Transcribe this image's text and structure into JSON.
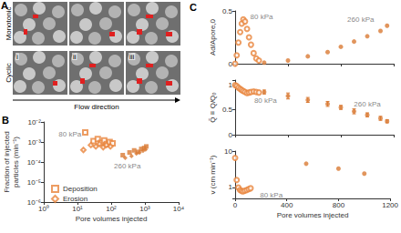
{
  "panel_a": {
    "label": "A",
    "rows": [
      "Monotonic",
      "Cyclic"
    ],
    "columns": [
      "i",
      "ii",
      "iii"
    ],
    "caption": "Flow direction"
  },
  "chart_data": [
    {
      "title": "B",
      "type": "scatter",
      "log": true,
      "xlabel": "Pore volumes injected",
      "ylabel": "Fraction of injected\nparticles (min⁻¹)",
      "xlim": [
        1,
        10000
      ],
      "xticks": [
        {
          "value": 1,
          "label": "10⁰"
        },
        {
          "value": 10,
          "label": "10¹"
        },
        {
          "value": 100,
          "label": "10²"
        },
        {
          "value": 1000,
          "label": "10³"
        },
        {
          "value": 10000,
          "label": "10⁴"
        }
      ],
      "ylim": [
        1e-06,
        0.01
      ],
      "yticks": [
        {
          "value": 1e-06,
          "label": "10⁻⁶"
        },
        {
          "value": 1e-05,
          "label": "10⁻⁵"
        },
        {
          "value": 0.0001,
          "label": "10⁻⁴"
        },
        {
          "value": 0.001,
          "label": "10⁻³"
        },
        {
          "value": 0.01,
          "label": "10⁻²"
        }
      ],
      "grid": false,
      "legend": "lower left",
      "series": [
        {
          "name": "Deposition",
          "marker": "open_square",
          "color": "#e8843c",
          "x": [
            17,
            30,
            40,
            50,
            62,
            75,
            90,
            110
          ],
          "values": [
            0.003,
            0.0011,
            0.0014,
            0.0009,
            0.0012,
            0.0008,
            0.001,
            0.00085
          ]
        },
        {
          "name": "Erosion",
          "marker": "open_diamond",
          "color": "#e8843c",
          "x": [
            15,
            25,
            35,
            45,
            58,
            72,
            95
          ],
          "values": [
            0.0004,
            0.0007,
            0.0006,
            0.0008,
            0.00055,
            0.0007,
            0.0006
          ]
        },
        {
          "name": "Deposition",
          "marker": "square",
          "color": "#d97a34",
          "x": [
            220,
            350,
            480,
            620,
            780,
            950,
            1100
          ],
          "values": [
            0.00022,
            0.0003,
            0.00038,
            0.00032,
            0.00045,
            0.0005,
            0.0006
          ]
        },
        {
          "name": "Erosion",
          "marker": "diamond",
          "color": "#d97a34",
          "x": [
            260,
            400,
            560,
            700,
            880,
            1050
          ],
          "values": [
            0.00016,
            0.0002,
            0.00026,
            0.0003,
            0.00036,
            0.00042
          ]
        }
      ],
      "annotations": [
        {
          "text": "80 kPa",
          "x": 6,
          "y": 0.0025
        },
        {
          "text": "260 kPa",
          "x": 300,
          "y": 6e-05
        }
      ]
    },
    {
      "title": "C",
      "type": "scatter",
      "ylabel": "Ad/Apore,0",
      "xlim": [
        0,
        1200
      ],
      "xticks": [
        0,
        400,
        800,
        1200
      ],
      "ylim": [
        0,
        0.5
      ],
      "yticks": [
        0,
        0.5
      ],
      "grid": false,
      "tick_labels": "y",
      "series": [
        {
          "marker": "open_circle",
          "color": "#e8843c",
          "x": [
            0,
            12,
            25,
            38,
            50,
            62,
            75,
            90,
            105,
            120,
            140,
            160,
            180
          ],
          "values": [
            0.0,
            0.08,
            0.2,
            0.3,
            0.38,
            0.42,
            0.4,
            0.33,
            0.25,
            0.18,
            0.1,
            0.05,
            0.03
          ]
        },
        {
          "marker": "circle",
          "color": "#d97a34",
          "x": [
            220,
            400,
            550,
            700,
            800,
            900,
            1000,
            1100,
            1150
          ],
          "values": [
            0.01,
            0.03,
            0.07,
            0.11,
            0.16,
            0.21,
            0.26,
            0.31,
            0.36
          ]
        }
      ],
      "annotations": [
        {
          "text": "80 kPa",
          "x": 200,
          "y": 0.44
        },
        {
          "text": "260 kPa",
          "x": 950,
          "y": 0.42
        }
      ]
    },
    {
      "type": "scatter",
      "ylabel": "Q̃ ≡ Q/Q₀",
      "xlim": [
        0,
        1200
      ],
      "xticks": [
        0,
        400,
        800,
        1200
      ],
      "ylim": [
        0,
        1.1
      ],
      "yticks": [
        0,
        0.5,
        1
      ],
      "grid": false,
      "tick_labels": "y",
      "series": [
        {
          "marker": "open_circle",
          "color": "#e8843c",
          "x": [
            0,
            12,
            25,
            38,
            50,
            62,
            75,
            90,
            105,
            120,
            140,
            160,
            180
          ],
          "values": [
            1,
            0.98,
            0.95,
            0.92,
            0.9,
            0.88,
            0.86,
            0.84,
            0.85,
            0.86,
            0.87,
            0.86,
            0.85
          ]
        },
        {
          "marker": "circle",
          "color": "#d97a34",
          "x": [
            220,
            400,
            550,
            700,
            800,
            900,
            1000,
            1100,
            1150
          ],
          "values": [
            0.86,
            0.78,
            0.7,
            0.62,
            0.55,
            0.47,
            0.4,
            0.33,
            0.27
          ],
          "errors": [
            0.04,
            0.06,
            0.05,
            0.05,
            0.04,
            0.05,
            0.04,
            0.04,
            0.03
          ]
        }
      ],
      "annotations": [
        {
          "text": "80 kPa",
          "x": 230,
          "y": 0.68
        },
        {
          "text": "260 kPa",
          "x": 1000,
          "y": 0.62
        }
      ]
    },
    {
      "type": "scatter",
      "log": "y",
      "xlabel": "Pore volumes injected",
      "ylabel": "v (cm min⁻¹)",
      "xlim": [
        0,
        1200
      ],
      "xticks": [
        0,
        400,
        800,
        1200
      ],
      "ylim": [
        0.5,
        10
      ],
      "yticks": [
        1,
        10
      ],
      "grid": false,
      "series": [
        {
          "marker": "open_circle",
          "color": "#e8843c",
          "x": [
            0,
            12,
            25,
            38,
            50,
            62,
            75,
            90,
            105,
            120
          ],
          "values": [
            6.5,
            1.6,
            1.0,
            0.85,
            0.8,
            0.78,
            0.82,
            0.85,
            0.9,
            0.95
          ]
        },
        {
          "marker": "circle",
          "color": "#d97a34",
          "x": [
            550,
            800,
            1000
          ],
          "values": [
            4.5,
            3.3,
            2.4
          ]
        }
      ],
      "annotations": [
        {
          "text": "80 kPa",
          "x": 280,
          "y": 0.62
        }
      ]
    }
  ]
}
